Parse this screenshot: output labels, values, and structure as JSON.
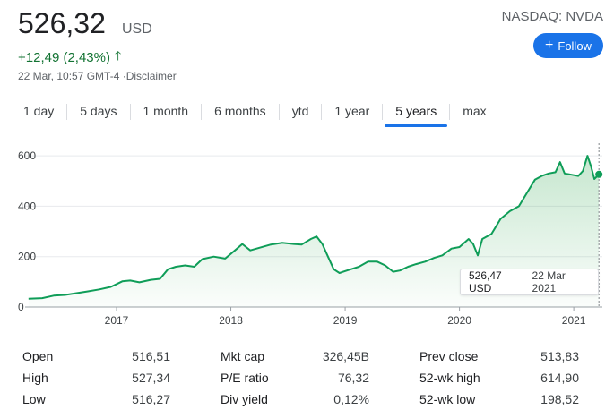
{
  "quote": {
    "price": "526,32",
    "currency": "USD",
    "change": "+12,49 (2,43%)",
    "timestamp": "22 Mar, 10:57 GMT-4 ·",
    "disclaimer": "Disclaimer",
    "exchange_ticker": "NASDAQ: NVDA"
  },
  "follow": {
    "label": "Follow",
    "icon": "plus-icon"
  },
  "tabs": [
    {
      "label": "1 day"
    },
    {
      "label": "5 days"
    },
    {
      "label": "1 month"
    },
    {
      "label": "6 months"
    },
    {
      "label": "ytd"
    },
    {
      "label": "1 year"
    },
    {
      "label": "5 years"
    },
    {
      "label": "max"
    }
  ],
  "active_tab": "5 years",
  "tooltip": {
    "value": "526,47 USD",
    "date": "22 Mar 2021"
  },
  "stats": {
    "col1": [
      {
        "label": "Open",
        "value": "516,51"
      },
      {
        "label": "High",
        "value": "527,34"
      },
      {
        "label": "Low",
        "value": "516,27"
      }
    ],
    "col2": [
      {
        "label": "Mkt cap",
        "value": "326,45B"
      },
      {
        "label": "P/E ratio",
        "value": "76,32"
      },
      {
        "label": "Div yield",
        "value": "0,12%"
      }
    ],
    "col3": [
      {
        "label": "Prev close",
        "value": "513,83"
      },
      {
        "label": "52-wk high",
        "value": "614,90"
      },
      {
        "label": "52-wk low",
        "value": "198,52"
      }
    ]
  },
  "colors": {
    "line": "#0f9d58",
    "up": "#137333",
    "accent": "#1a73e8"
  },
  "chart_data": {
    "type": "area",
    "title": "",
    "xlabel": "",
    "ylabel": "",
    "ylim": [
      0,
      650
    ],
    "xlim": [
      2016.2,
      2021.25
    ],
    "yticks": [
      0,
      200,
      400,
      600
    ],
    "xticks": [
      "2017",
      "2018",
      "2019",
      "2020",
      "2021"
    ],
    "grid": true,
    "series": [
      {
        "values": [
          [
            2016.23,
            33
          ],
          [
            2016.35,
            35
          ],
          [
            2016.45,
            45
          ],
          [
            2016.55,
            48
          ],
          [
            2016.65,
            55
          ],
          [
            2016.75,
            62
          ],
          [
            2016.85,
            70
          ],
          [
            2016.95,
            80
          ],
          [
            2017.05,
            102
          ],
          [
            2017.12,
            105
          ],
          [
            2017.2,
            98
          ],
          [
            2017.3,
            108
          ],
          [
            2017.38,
            112
          ],
          [
            2017.45,
            150
          ],
          [
            2017.52,
            160
          ],
          [
            2017.6,
            165
          ],
          [
            2017.68,
            160
          ],
          [
            2017.75,
            190
          ],
          [
            2017.85,
            200
          ],
          [
            2017.95,
            192
          ],
          [
            2018.05,
            230
          ],
          [
            2018.1,
            250
          ],
          [
            2018.17,
            225
          ],
          [
            2018.25,
            235
          ],
          [
            2018.35,
            248
          ],
          [
            2018.45,
            255
          ],
          [
            2018.55,
            250
          ],
          [
            2018.62,
            248
          ],
          [
            2018.7,
            270
          ],
          [
            2018.75,
            280
          ],
          [
            2018.8,
            250
          ],
          [
            2018.85,
            200
          ],
          [
            2018.9,
            150
          ],
          [
            2018.95,
            135
          ],
          [
            2019.05,
            150
          ],
          [
            2019.12,
            160
          ],
          [
            2019.2,
            180
          ],
          [
            2019.28,
            180
          ],
          [
            2019.35,
            165
          ],
          [
            2019.42,
            140
          ],
          [
            2019.48,
            145
          ],
          [
            2019.55,
            160
          ],
          [
            2019.62,
            170
          ],
          [
            2019.7,
            180
          ],
          [
            2019.78,
            195
          ],
          [
            2019.85,
            205
          ],
          [
            2019.93,
            232
          ],
          [
            2020.0,
            238
          ],
          [
            2020.08,
            270
          ],
          [
            2020.12,
            250
          ],
          [
            2020.16,
            205
          ],
          [
            2020.2,
            270
          ],
          [
            2020.28,
            290
          ],
          [
            2020.36,
            350
          ],
          [
            2020.44,
            380
          ],
          [
            2020.52,
            400
          ],
          [
            2020.6,
            460
          ],
          [
            2020.66,
            505
          ],
          [
            2020.72,
            520
          ],
          [
            2020.78,
            530
          ],
          [
            2020.84,
            535
          ],
          [
            2020.88,
            575
          ],
          [
            2020.92,
            530
          ],
          [
            2020.98,
            525
          ],
          [
            2021.04,
            520
          ],
          [
            2021.08,
            540
          ],
          [
            2021.12,
            600
          ],
          [
            2021.15,
            560
          ],
          [
            2021.18,
            508
          ],
          [
            2021.22,
            526.47
          ]
        ]
      }
    ]
  }
}
